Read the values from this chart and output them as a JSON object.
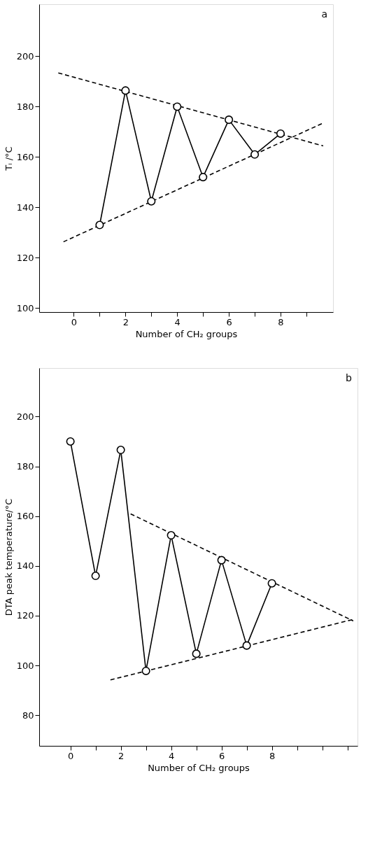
{
  "chart_data": [
    {
      "type": "line",
      "xlabel": "Number of CH₂ groups",
      "ylabel": "Tᵢ /°C",
      "annotations": [
        "a"
      ],
      "marker": "circle",
      "line_style": "solid",
      "grid": false,
      "xlim": [
        -1.34,
        10.03
      ],
      "ylim": [
        98.4,
        220.7
      ],
      "xticks": [
        0,
        {
          "value": 1,
          "label": null
        },
        2,
        {
          "value": 3,
          "label": null
        },
        4,
        {
          "value": 5,
          "label": null
        },
        6,
        {
          "value": 7,
          "label": null
        },
        8,
        {
          "value": 9,
          "label": null
        }
      ],
      "yticks": [
        100,
        120,
        140,
        160,
        180,
        200
      ],
      "series": [
        {
          "color": "#000000",
          "line_style": "dashed",
          "marker": "none",
          "x": [
            -0.6,
            9.65
          ],
          "values": [
            193.4,
            164.4
          ]
        },
        {
          "color": "#000000",
          "line_style": "dashed",
          "marker": "none",
          "x": [
            -0.4,
            9.65
          ],
          "values": [
            126.3,
            173.5
          ]
        },
        {
          "color": "#000000",
          "x": [
            1,
            2,
            3,
            4,
            5,
            6,
            7,
            8
          ],
          "values": [
            133,
            186.4,
            142.4,
            180,
            152,
            174.8,
            161,
            169.3
          ]
        }
      ]
    },
    {
      "type": "line",
      "xlabel": "Number of CH₂ groups",
      "ylabel": "DTA peak temperature/°C",
      "annotations": [
        "b"
      ],
      "marker": "circle",
      "line_style": "solid",
      "grid": false,
      "xlim": [
        -1.24,
        11.4
      ],
      "ylim": [
        67.7,
        219.5
      ],
      "xticks": [
        0,
        {
          "value": 1,
          "label": null
        },
        2,
        {
          "value": 3,
          "label": null
        },
        4,
        {
          "value": 5,
          "label": null
        },
        6,
        {
          "value": 7,
          "label": null
        },
        8,
        {
          "value": 9,
          "label": null
        },
        {
          "value": 10,
          "label": null
        },
        {
          "value": 11,
          "label": null
        }
      ],
      "yticks": [
        80,
        100,
        120,
        140,
        160,
        180,
        200
      ],
      "series": [
        {
          "color": "#000000",
          "line_style": "dashed",
          "marker": "none",
          "x": [
            2.39,
            11.23
          ],
          "values": [
            160.9,
            117.9
          ]
        },
        {
          "color": "#000000",
          "line_style": "dashed",
          "marker": "none",
          "x": [
            1.59,
            11.27
          ],
          "values": [
            94.2,
            118.6
          ]
        },
        {
          "color": "#000000",
          "x": [
            0,
            1,
            2,
            3,
            4,
            5,
            6,
            7,
            8
          ],
          "values": [
            190,
            136,
            186.6,
            97.8,
            152.3,
            104.7,
            142.3,
            108,
            133
          ]
        }
      ]
    }
  ]
}
